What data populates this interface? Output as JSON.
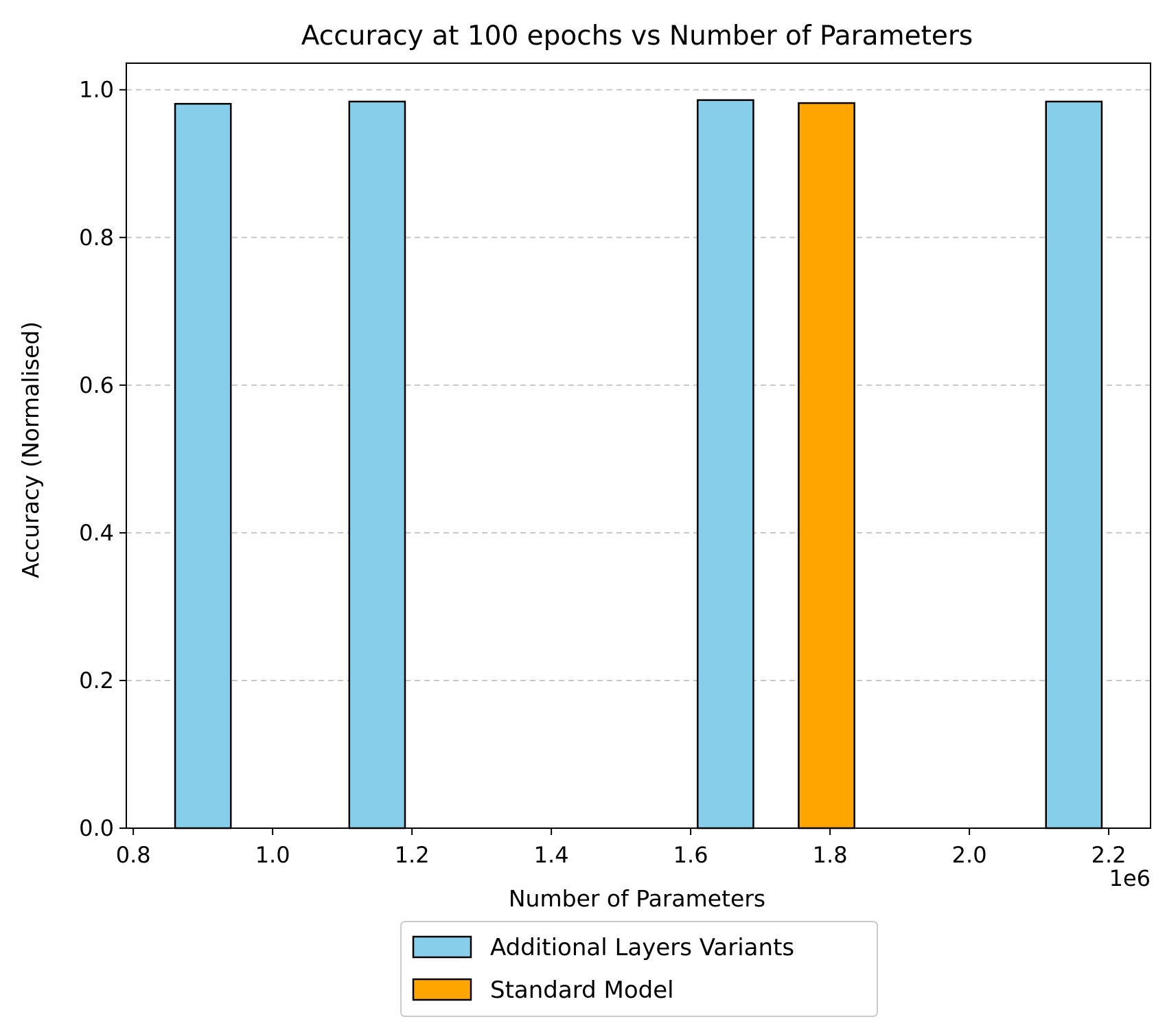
{
  "chart_data": {
    "type": "bar",
    "title": "Accuracy at 100 epochs vs Number of Parameters",
    "xlabel": "Number of Parameters",
    "ylabel": "Accuracy (Normalised)",
    "x_offset_label": "1e6",
    "xlim": [
      0.79,
      2.26
    ],
    "ylim": [
      0.0,
      1.036
    ],
    "x_scale": 1000000,
    "bar_width": 0.08,
    "x_ticks": [
      0.8,
      1.0,
      1.2,
      1.4,
      1.6,
      1.8,
      2.0,
      2.2
    ],
    "x_tick_labels": [
      "0.8",
      "1.0",
      "1.2",
      "1.4",
      "1.6",
      "1.8",
      "2.0",
      "2.2"
    ],
    "y_ticks": [
      0.0,
      0.2,
      0.4,
      0.6,
      0.8,
      1.0
    ],
    "y_tick_labels": [
      "0.0",
      "0.2",
      "0.4",
      "0.6",
      "0.8",
      "1.0"
    ],
    "grid": "y-dashed",
    "legend_position": "below-center",
    "series": [
      {
        "name": "Additional Layers Variants",
        "color": "#87ceeb",
        "x": [
          0.9,
          1.15,
          1.65,
          2.15
        ],
        "values": [
          0.981,
          0.984,
          0.986,
          0.984
        ]
      },
      {
        "name": "Standard Model",
        "color": "#ffa500",
        "x": [
          1.795
        ],
        "values": [
          0.982
        ]
      }
    ]
  }
}
